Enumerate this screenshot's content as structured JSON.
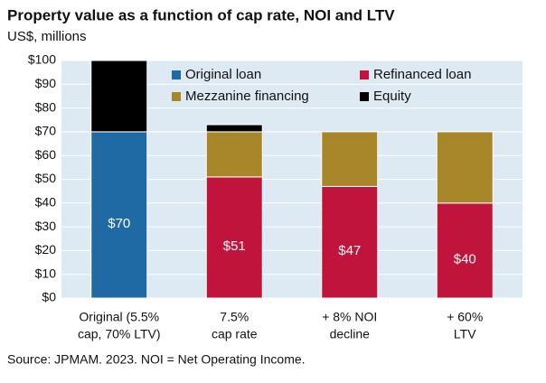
{
  "chart_data": {
    "type": "stacked_bar",
    "title": "Property value as a function of cap rate, NOI and LTV",
    "subtitle": "US$, millions",
    "source": "Source: JPMAM. 2023. NOI = Net Operating Income.",
    "categories": [
      [
        "Original (5.5%",
        "cap, 70% LTV)"
      ],
      [
        "7.5%",
        "cap rate"
      ],
      [
        "+ 8% NOI",
        "decline"
      ],
      [
        "+ 60%",
        "LTV"
      ]
    ],
    "series": [
      {
        "name": "Original loan",
        "color": "#1f6aa5",
        "values": [
          70,
          null,
          null,
          null
        ],
        "value_labels": [
          "$70",
          null,
          null,
          null
        ]
      },
      {
        "name": "Refinanced loan",
        "color": "#c0143c",
        "values": [
          null,
          51,
          47,
          40
        ],
        "value_labels": [
          null,
          "$51",
          "$47",
          "$40"
        ]
      },
      {
        "name": "Mezzanine financing",
        "color": "#a8862a",
        "values": [
          null,
          19,
          23,
          30
        ]
      },
      {
        "name": "Equity",
        "color": "#000000",
        "values": [
          30,
          3,
          null,
          null
        ]
      }
    ],
    "ylim": [
      0,
      100
    ],
    "yticks": [
      {
        "value": 0,
        "label": "$0"
      },
      {
        "value": 10,
        "label": "$10"
      },
      {
        "value": 20,
        "label": "$20"
      },
      {
        "value": 30,
        "label": "$30"
      },
      {
        "value": 40,
        "label": "$40"
      },
      {
        "value": 50,
        "label": "$50"
      },
      {
        "value": 60,
        "label": "$60"
      },
      {
        "value": 70,
        "label": "$70"
      },
      {
        "value": 80,
        "label": "$80"
      },
      {
        "value": 90,
        "label": "$90"
      },
      {
        "value": 100,
        "label": "$100"
      }
    ],
    "grid": true
  }
}
